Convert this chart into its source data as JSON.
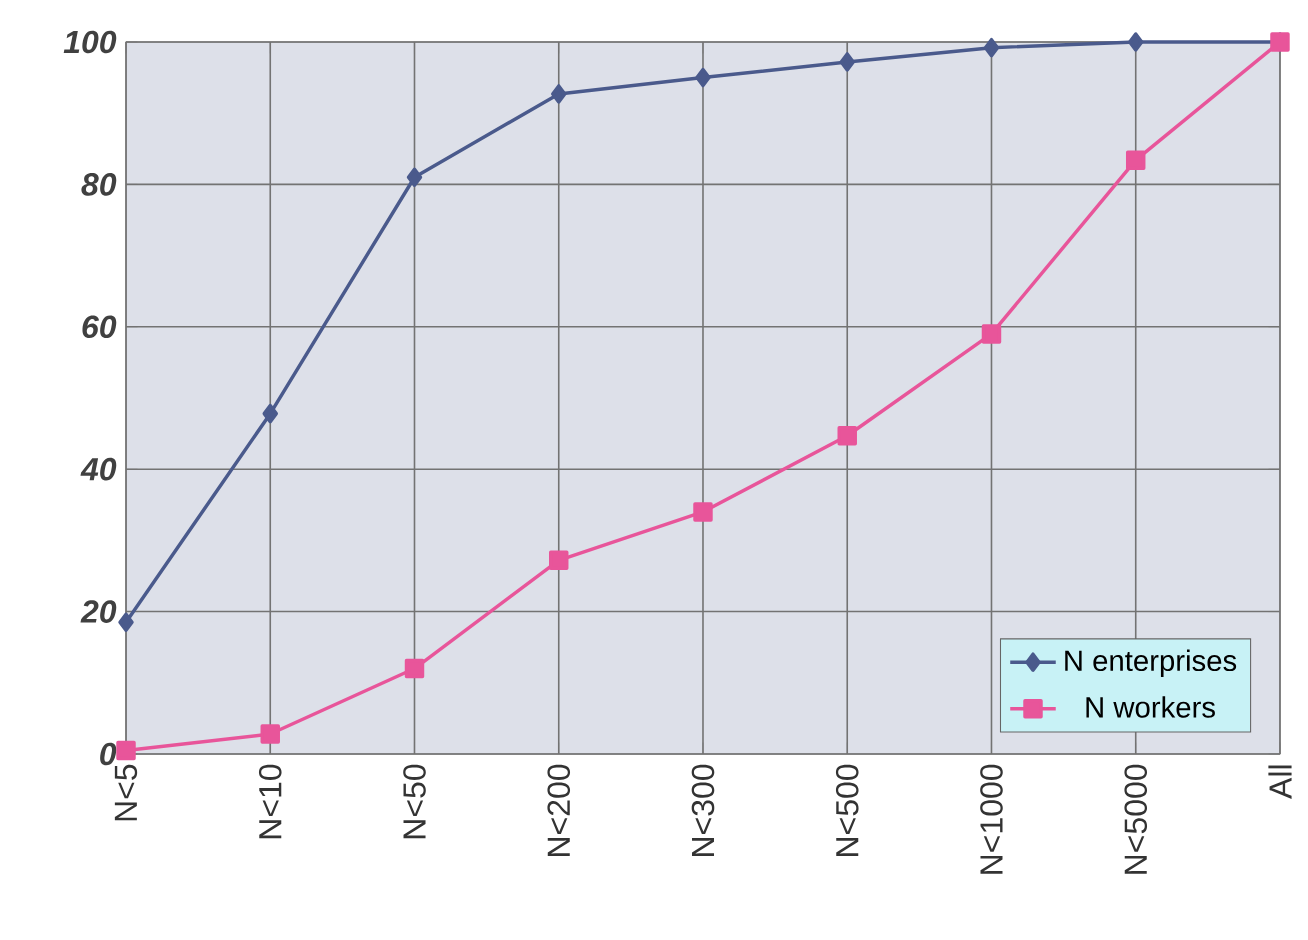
{
  "chart_data": {
    "type": "line",
    "categories": [
      "N<5",
      "N<10",
      "N<50",
      "N<200",
      "N<300",
      "N<500",
      "N<1000",
      "N<5000",
      "All"
    ],
    "series": [
      {
        "name": "N enterprises",
        "color": "#4a5a8c",
        "marker": "diamond",
        "values": [
          18.5,
          47.8,
          81,
          92.7,
          95,
          97.2,
          99.2,
          100,
          100
        ]
      },
      {
        "name": "N workers",
        "color": "#e8559a",
        "marker": "square",
        "values": [
          0.5,
          2.8,
          12,
          27.2,
          34,
          44.7,
          59,
          83.4,
          100
        ]
      }
    ],
    "ylim": [
      0,
      100
    ],
    "yticks": [
      0,
      20,
      40,
      60,
      80,
      100
    ],
    "grid": true,
    "legend": "bottom right",
    "line_style": "solid"
  }
}
